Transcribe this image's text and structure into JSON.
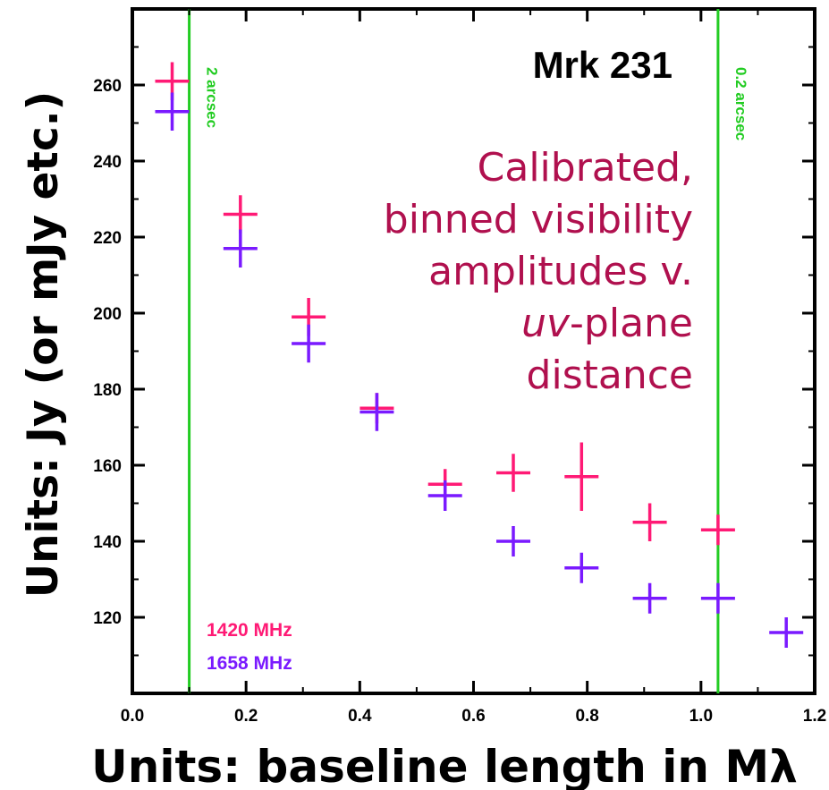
{
  "chart_data": {
    "type": "scatter",
    "title": "Mrk 231",
    "xlabel": "Units: baseline length in Mλ",
    "ylabel": "Units: Jy (or mJy etc.)",
    "xlim": [
      0.0,
      1.2
    ],
    "ylim": [
      100,
      280
    ],
    "x_ticks": [
      "0.0",
      "0.2",
      "0.4",
      "0.6",
      "0.8",
      "1.0",
      "1.2"
    ],
    "y_ticks": [
      "120",
      "140",
      "160",
      "180",
      "200",
      "220",
      "240",
      "260"
    ],
    "annotation": {
      "lines": [
        "Calibrated,",
        "binned visibility",
        "amplitudes v.",
        "-plane",
        "distance"
      ],
      "italic_part": "uv"
    },
    "reference_lines": [
      {
        "x": 0.1,
        "label": "2 arcsec",
        "color": "#22cc22"
      },
      {
        "x": 1.03,
        "label": "0.2 arcsec",
        "color": "#22cc22"
      }
    ],
    "series": [
      {
        "name": "1420 MHz",
        "color": "#ff1a75",
        "x": [
          0.07,
          0.19,
          0.31,
          0.43,
          0.55,
          0.67,
          0.79,
          0.91,
          1.03
        ],
        "y": [
          261,
          226,
          199,
          175,
          155,
          158,
          157,
          145,
          143
        ],
        "yerr": [
          5,
          5,
          5,
          4,
          4,
          5,
          9,
          5,
          4
        ]
      },
      {
        "name": "1658 MHz",
        "color": "#7a1aff",
        "x": [
          0.07,
          0.19,
          0.31,
          0.43,
          0.55,
          0.67,
          0.79,
          0.91,
          1.03,
          1.15
        ],
        "y": [
          253,
          217,
          192,
          174,
          152,
          140,
          133,
          125,
          125,
          116
        ],
        "yerr": [
          5,
          5,
          5,
          5,
          4,
          4,
          4,
          4,
          4,
          4
        ]
      }
    ]
  }
}
